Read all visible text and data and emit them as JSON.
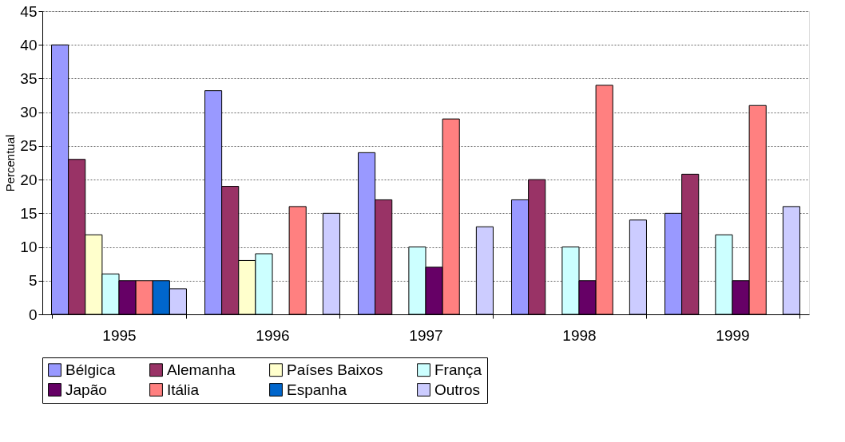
{
  "chart_data": {
    "type": "bar",
    "ylabel": "Percentual",
    "categories": [
      "1995",
      "1996",
      "1997",
      "1998",
      "1999"
    ],
    "series": [
      {
        "name": "Bélgica",
        "color": "#9999ff",
        "values": [
          40,
          33.2,
          24,
          17,
          15
        ]
      },
      {
        "name": "Alemanha",
        "color": "#993366",
        "values": [
          23,
          19,
          17,
          20,
          20.8
        ]
      },
      {
        "name": "Países Baixos",
        "color": "#ffffcc",
        "values": [
          11.8,
          8,
          null,
          null,
          null
        ]
      },
      {
        "name": "França",
        "color": "#ccffff",
        "values": [
          6,
          9,
          10,
          10,
          11.8
        ]
      },
      {
        "name": "Japão",
        "color": "#660066",
        "values": [
          5,
          null,
          7,
          5,
          5
        ]
      },
      {
        "name": "Itália",
        "color": "#ff8080",
        "values": [
          5,
          16,
          29,
          34,
          31
        ]
      },
      {
        "name": "Espanha",
        "color": "#0066cc",
        "values": [
          5,
          null,
          null,
          null,
          null
        ]
      },
      {
        "name": "Outros",
        "color": "#ccccff",
        "values": [
          3.8,
          15,
          13,
          14,
          16
        ]
      }
    ],
    "ylim": [
      0,
      45
    ],
    "yticks": [
      0,
      5,
      10,
      15,
      20,
      25,
      30,
      35,
      40,
      45
    ],
    "grid": "y",
    "legend": "bottom"
  }
}
